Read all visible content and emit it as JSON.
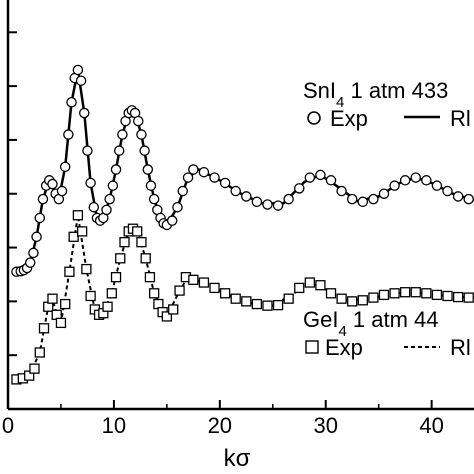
{
  "chart_data": {
    "type": "scatter",
    "xlabel": "kσ",
    "xlim": [
      0,
      44
    ],
    "ylim": [
      0,
      7.6
    ],
    "x_ticks": [
      0,
      10,
      20,
      30,
      40
    ],
    "x_tick_labels": [
      "0",
      "10",
      "20",
      "30",
      "40"
    ],
    "y_tick_positions": [
      1,
      2,
      3,
      4,
      5,
      6,
      7
    ],
    "grid": false,
    "series": [
      {
        "name": "Exp",
        "group": "SnI4 1 atm 433",
        "marker": "circle",
        "points": [
          [
            0.8,
            2.55
          ],
          [
            1.2,
            2.56
          ],
          [
            1.5,
            2.58
          ],
          [
            1.8,
            2.62
          ],
          [
            2.1,
            2.72
          ],
          [
            2.4,
            2.9
          ],
          [
            2.7,
            3.2
          ],
          [
            3.0,
            3.55
          ],
          [
            3.3,
            3.9
          ],
          [
            3.6,
            4.15
          ],
          [
            3.9,
            4.25
          ],
          [
            4.2,
            4.18
          ],
          [
            4.5,
            4.0
          ],
          [
            4.8,
            3.9
          ],
          [
            5.1,
            4.05
          ],
          [
            5.4,
            4.5
          ],
          [
            5.7,
            5.1
          ],
          [
            6.0,
            5.7
          ],
          [
            6.3,
            6.15
          ],
          [
            6.6,
            6.3
          ],
          [
            6.9,
            6.1
          ],
          [
            7.2,
            5.5
          ],
          [
            7.5,
            4.8
          ],
          [
            7.8,
            4.2
          ],
          [
            8.1,
            3.75
          ],
          [
            8.4,
            3.55
          ],
          [
            8.7,
            3.5
          ],
          [
            9.0,
            3.55
          ],
          [
            9.3,
            3.7
          ],
          [
            9.6,
            3.9
          ],
          [
            9.9,
            4.15
          ],
          [
            10.2,
            4.45
          ],
          [
            10.5,
            4.8
          ],
          [
            10.8,
            5.1
          ],
          [
            11.1,
            5.35
          ],
          [
            11.4,
            5.5
          ],
          [
            11.7,
            5.55
          ],
          [
            12.0,
            5.5
          ],
          [
            12.3,
            5.35
          ],
          [
            12.6,
            5.1
          ],
          [
            12.9,
            4.8
          ],
          [
            13.2,
            4.45
          ],
          [
            13.5,
            4.15
          ],
          [
            13.8,
            3.9
          ],
          [
            14.1,
            3.7
          ],
          [
            14.4,
            3.55
          ],
          [
            14.7,
            3.45
          ],
          [
            15.0,
            3.42
          ],
          [
            15.5,
            3.5
          ],
          [
            16.0,
            3.75
          ],
          [
            16.5,
            4.05
          ],
          [
            17.0,
            4.3
          ],
          [
            17.5,
            4.45
          ],
          [
            18.5,
            4.4
          ],
          [
            19.5,
            4.3
          ],
          [
            20.5,
            4.2
          ],
          [
            21.5,
            4.05
          ],
          [
            22.5,
            3.95
          ],
          [
            23.5,
            3.85
          ],
          [
            24.5,
            3.8
          ],
          [
            25.5,
            3.78
          ],
          [
            26.5,
            3.9
          ],
          [
            27.5,
            4.1
          ],
          [
            28.5,
            4.3
          ],
          [
            29.5,
            4.35
          ],
          [
            30.5,
            4.25
          ],
          [
            31.5,
            4.05
          ],
          [
            32.5,
            3.9
          ],
          [
            33.5,
            3.85
          ],
          [
            34.5,
            3.9
          ],
          [
            35.5,
            4.0
          ],
          [
            36.5,
            4.15
          ],
          [
            37.5,
            4.25
          ],
          [
            38.5,
            4.3
          ],
          [
            39.5,
            4.25
          ],
          [
            40.5,
            4.15
          ],
          [
            41.5,
            4.05
          ],
          [
            42.5,
            3.95
          ],
          [
            43.5,
            3.9
          ]
        ]
      },
      {
        "name": "RI",
        "group": "SnI4 1 atm 433",
        "line": "solid",
        "points": [
          [
            0.8,
            2.55
          ],
          [
            1.5,
            2.58
          ],
          [
            2.1,
            2.72
          ],
          [
            2.7,
            3.2
          ],
          [
            3.3,
            3.9
          ],
          [
            3.9,
            4.25
          ],
          [
            4.5,
            4.0
          ],
          [
            4.8,
            3.9
          ],
          [
            5.4,
            4.5
          ],
          [
            6.0,
            5.7
          ],
          [
            6.6,
            6.3
          ],
          [
            7.2,
            5.5
          ],
          [
            7.8,
            4.2
          ],
          [
            8.4,
            3.55
          ],
          [
            9.0,
            3.55
          ],
          [
            9.6,
            3.9
          ],
          [
            10.2,
            4.45
          ],
          [
            10.8,
            5.1
          ],
          [
            11.4,
            5.5
          ],
          [
            12.0,
            5.5
          ],
          [
            12.6,
            5.1
          ],
          [
            13.2,
            4.45
          ],
          [
            13.8,
            3.9
          ],
          [
            14.4,
            3.55
          ],
          [
            15.0,
            3.42
          ],
          [
            16.0,
            3.75
          ],
          [
            17.0,
            4.3
          ],
          [
            18.0,
            4.45
          ],
          [
            20.0,
            4.25
          ],
          [
            22.0,
            4.0
          ],
          [
            24.0,
            3.82
          ],
          [
            26.0,
            3.82
          ],
          [
            28.0,
            4.22
          ],
          [
            29.5,
            4.35
          ],
          [
            31.0,
            4.15
          ],
          [
            33.0,
            3.86
          ],
          [
            35.0,
            3.95
          ],
          [
            37.0,
            4.2
          ],
          [
            38.5,
            4.3
          ],
          [
            40.0,
            4.2
          ],
          [
            42.0,
            4.0
          ],
          [
            44.0,
            3.88
          ]
        ]
      },
      {
        "name": "Exp",
        "group": "GeI4 1 atm 44",
        "marker": "square",
        "points": [
          [
            0.8,
            0.55
          ],
          [
            1.4,
            0.57
          ],
          [
            2.0,
            0.62
          ],
          [
            2.5,
            0.75
          ],
          [
            3.0,
            1.05
          ],
          [
            3.4,
            1.5
          ],
          [
            3.8,
            1.9
          ],
          [
            4.2,
            2.05
          ],
          [
            4.6,
            1.75
          ],
          [
            5.0,
            1.6
          ],
          [
            5.4,
            1.95
          ],
          [
            5.8,
            2.55
          ],
          [
            6.2,
            3.2
          ],
          [
            6.6,
            3.6
          ],
          [
            7.0,
            3.3
          ],
          [
            7.4,
            2.6
          ],
          [
            7.8,
            2.1
          ],
          [
            8.2,
            1.85
          ],
          [
            8.6,
            1.75
          ],
          [
            9.0,
            1.78
          ],
          [
            9.4,
            1.9
          ],
          [
            9.8,
            2.15
          ],
          [
            10.2,
            2.45
          ],
          [
            10.6,
            2.8
          ],
          [
            11.0,
            3.1
          ],
          [
            11.4,
            3.3
          ],
          [
            11.8,
            3.35
          ],
          [
            12.2,
            3.3
          ],
          [
            12.6,
            3.1
          ],
          [
            13.0,
            2.8
          ],
          [
            13.4,
            2.45
          ],
          [
            13.8,
            2.15
          ],
          [
            14.2,
            1.95
          ],
          [
            14.6,
            1.8
          ],
          [
            15.0,
            1.72
          ],
          [
            15.6,
            1.85
          ],
          [
            16.2,
            2.2
          ],
          [
            16.8,
            2.45
          ],
          [
            17.5,
            2.4
          ],
          [
            18.5,
            2.35
          ],
          [
            19.5,
            2.25
          ],
          [
            20.5,
            2.15
          ],
          [
            21.5,
            2.05
          ],
          [
            22.5,
            2.0
          ],
          [
            23.5,
            1.95
          ],
          [
            24.5,
            1.92
          ],
          [
            25.5,
            1.93
          ],
          [
            26.5,
            2.05
          ],
          [
            27.5,
            2.25
          ],
          [
            28.5,
            2.35
          ],
          [
            29.5,
            2.3
          ],
          [
            30.5,
            2.15
          ],
          [
            31.5,
            2.05
          ],
          [
            32.5,
            2.0
          ],
          [
            33.5,
            2.02
          ],
          [
            34.5,
            2.07
          ],
          [
            35.5,
            2.12
          ],
          [
            36.5,
            2.15
          ],
          [
            37.5,
            2.17
          ],
          [
            38.5,
            2.17
          ],
          [
            39.5,
            2.15
          ],
          [
            40.5,
            2.12
          ],
          [
            41.5,
            2.1
          ],
          [
            42.5,
            2.08
          ],
          [
            43.5,
            2.07
          ]
        ]
      },
      {
        "name": "RI",
        "group": "GeI4 1 atm 44",
        "line": "dashed",
        "points": [
          [
            0.8,
            0.55
          ],
          [
            2.0,
            0.62
          ],
          [
            3.0,
            1.05
          ],
          [
            3.8,
            1.9
          ],
          [
            4.2,
            2.05
          ],
          [
            4.6,
            1.75
          ],
          [
            5.0,
            1.6
          ],
          [
            5.8,
            2.55
          ],
          [
            6.6,
            3.6
          ],
          [
            7.4,
            2.6
          ],
          [
            8.2,
            1.85
          ],
          [
            9.0,
            1.78
          ],
          [
            9.8,
            2.15
          ],
          [
            10.6,
            2.8
          ],
          [
            11.4,
            3.3
          ],
          [
            12.2,
            3.3
          ],
          [
            13.0,
            2.8
          ],
          [
            13.8,
            2.15
          ],
          [
            14.6,
            1.8
          ],
          [
            15.0,
            1.72
          ],
          [
            16.2,
            2.2
          ],
          [
            17.0,
            2.45
          ],
          [
            19.0,
            2.3
          ],
          [
            21.0,
            2.1
          ],
          [
            23.0,
            1.97
          ],
          [
            25.0,
            1.92
          ],
          [
            27.0,
            2.15
          ],
          [
            28.5,
            2.35
          ],
          [
            30.0,
            2.22
          ],
          [
            32.0,
            2.02
          ],
          [
            34.0,
            2.04
          ],
          [
            36.0,
            2.14
          ],
          [
            38.0,
            2.17
          ],
          [
            40.0,
            2.13
          ],
          [
            42.0,
            2.09
          ],
          [
            44.0,
            2.07
          ]
        ]
      }
    ],
    "legends": [
      {
        "title_parts": [
          "SnI",
          "4",
          " 1 atm 433"
        ],
        "entries": [
          "Exp",
          "Rl"
        ],
        "placement": "upper-right"
      },
      {
        "title_parts": [
          "GeI",
          "4",
          " 1 atm 44"
        ],
        "entries": [
          "Exp",
          "Rl"
        ],
        "placement": "lower-right"
      }
    ]
  }
}
